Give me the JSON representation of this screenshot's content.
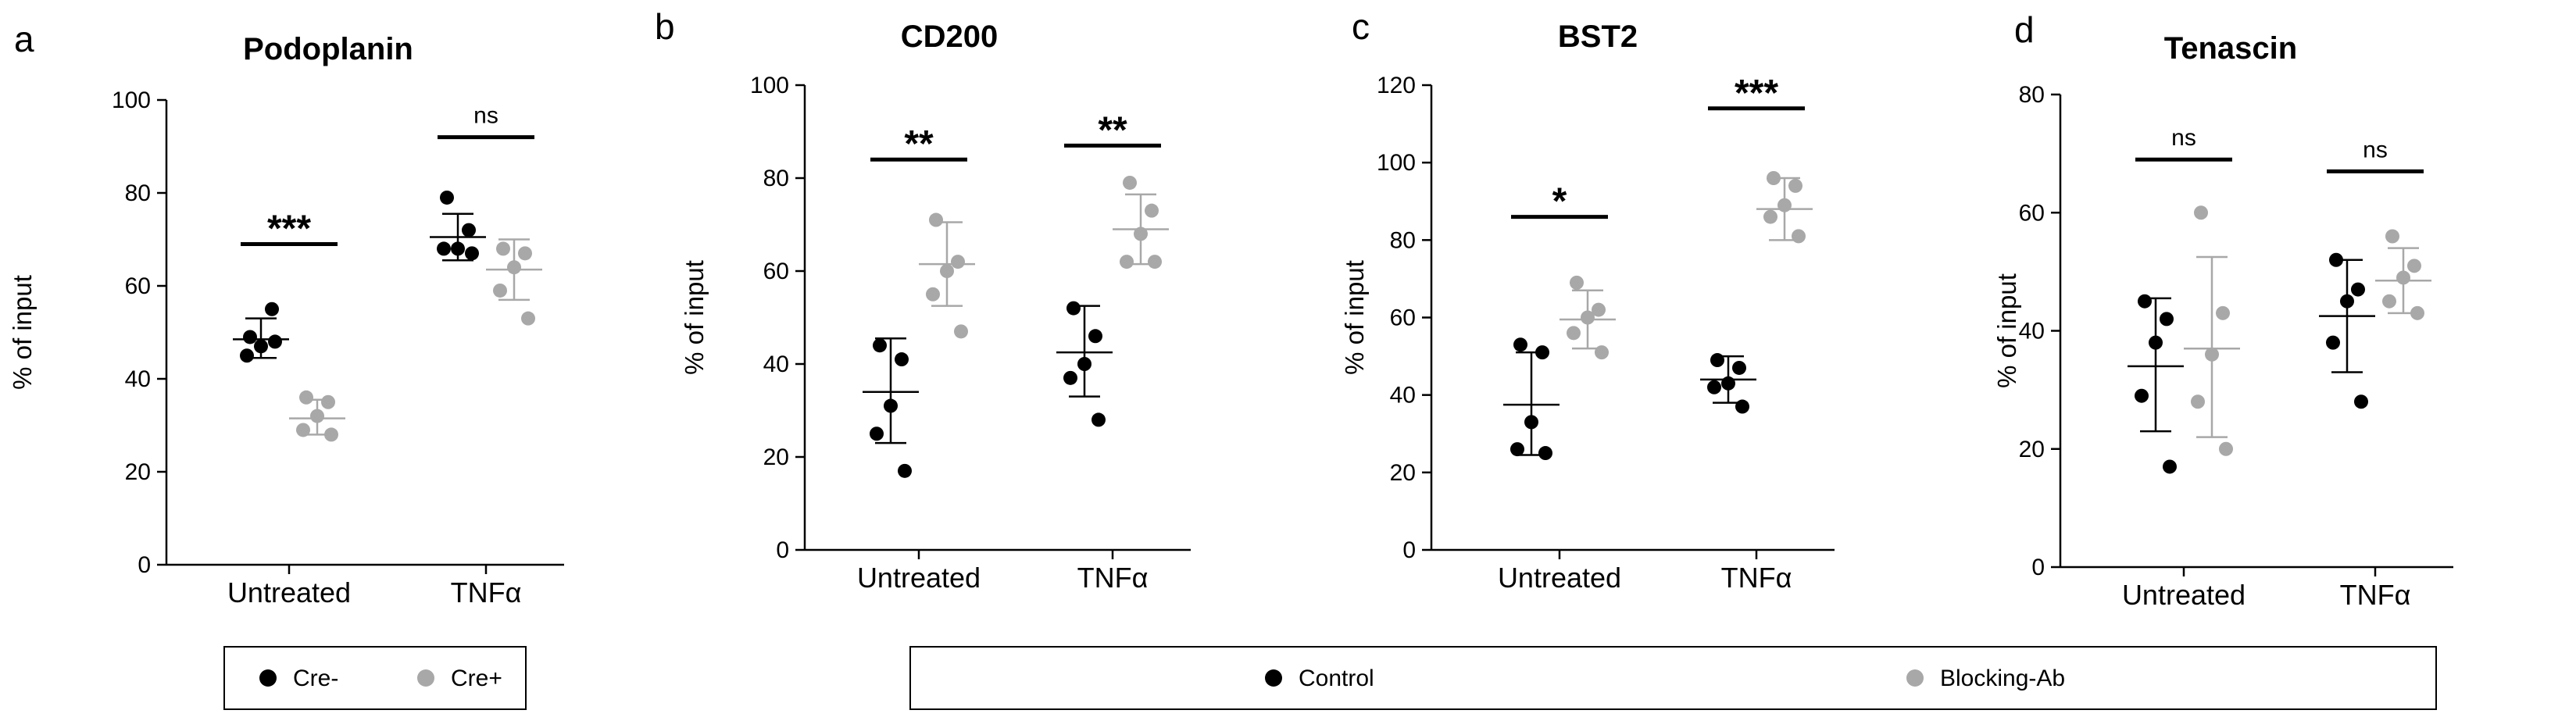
{
  "chart_data": [
    {
      "panel": "a",
      "type": "scatter",
      "title": "Podoplanin",
      "ylabel": "% of input",
      "ylim": [
        0,
        100
      ],
      "yticks": [
        0,
        20,
        40,
        60,
        80,
        100
      ],
      "categories": [
        "Untreated",
        "TNFα"
      ],
      "series": [
        {
          "name": "Cre-",
          "color": "#000000",
          "points": [
            [
              49,
              55,
              47,
              45,
              48
            ],
            [
              79,
              72,
              68,
              68,
              67
            ]
          ],
          "mean": [
            48.5,
            70.5
          ],
          "sd_low": [
            44.5,
            65.5
          ],
          "sd_high": [
            53,
            75.5
          ]
        },
        {
          "name": "Cre+",
          "color": "#a8a8a8",
          "points": [
            [
              36,
              35,
              32,
              29,
              28
            ],
            [
              68,
              67,
              64,
              59,
              53
            ]
          ],
          "mean": [
            31.5,
            63.5
          ],
          "sd_low": [
            28,
            57
          ],
          "sd_high": [
            35.5,
            70
          ]
        }
      ],
      "annotations": [
        {
          "text": "***",
          "y": 69
        },
        {
          "text": "ns",
          "y": 92
        }
      ]
    },
    {
      "panel": "b",
      "type": "scatter",
      "title": "CD200",
      "ylabel": "% of input",
      "ylim": [
        0,
        100
      ],
      "yticks": [
        0,
        20,
        40,
        60,
        80,
        100
      ],
      "categories": [
        "Untreated",
        "TNFα"
      ],
      "series": [
        {
          "name": "Control",
          "color": "#000000",
          "points": [
            [
              44,
              41,
              31,
              25,
              17
            ],
            [
              52,
              46,
              40,
              37,
              28
            ]
          ],
          "mean": [
            34,
            42.5
          ],
          "sd_low": [
            23,
            33
          ],
          "sd_high": [
            45.5,
            52.5
          ]
        },
        {
          "name": "Blocking-Ab",
          "color": "#a8a8a8",
          "points": [
            [
              71,
              62,
              60,
              55,
              47
            ],
            [
              79,
              73,
              68,
              62,
              62
            ]
          ],
          "mean": [
            61.5,
            69
          ],
          "sd_low": [
            52.5,
            61.5
          ],
          "sd_high": [
            70.5,
            76.5
          ]
        }
      ],
      "annotations": [
        {
          "text": "**",
          "y": 84
        },
        {
          "text": "**",
          "y": 87
        }
      ]
    },
    {
      "panel": "c",
      "type": "scatter",
      "title": "BST2",
      "ylabel": "% of input",
      "ylim": [
        0,
        120
      ],
      "yticks": [
        0,
        20,
        40,
        60,
        80,
        100,
        120
      ],
      "categories": [
        "Untreated",
        "TNFα"
      ],
      "series": [
        {
          "name": "Control",
          "color": "#000000",
          "points": [
            [
              53,
              51,
              33,
              26,
              25
            ],
            [
              49,
              47,
              43,
              42,
              37
            ]
          ],
          "mean": [
            37.5,
            44
          ],
          "sd_low": [
            24.5,
            38
          ],
          "sd_high": [
            51,
            50
          ]
        },
        {
          "name": "Blocking-Ab",
          "color": "#a8a8a8",
          "points": [
            [
              69,
              62,
              60,
              56,
              51
            ],
            [
              96,
              94,
              89,
              86,
              81
            ]
          ],
          "mean": [
            59.5,
            88
          ],
          "sd_low": [
            52,
            80
          ],
          "sd_high": [
            67,
            96
          ]
        }
      ],
      "annotations": [
        {
          "text": "*",
          "y": 86
        },
        {
          "text": "***",
          "y": 114
        }
      ]
    },
    {
      "panel": "d",
      "type": "scatter",
      "title": "Tenascin",
      "ylabel": "% of input",
      "ylim": [
        0,
        80
      ],
      "yticks": [
        0,
        20,
        40,
        60,
        80
      ],
      "categories": [
        "Untreated",
        "TNFα"
      ],
      "series": [
        {
          "name": "Control",
          "color": "#000000",
          "points": [
            [
              45,
              42,
              38,
              29,
              17
            ],
            [
              52,
              47,
              45,
              38,
              28
            ]
          ],
          "mean": [
            34,
            42.5
          ],
          "sd_low": [
            23,
            33
          ],
          "sd_high": [
            45.5,
            52
          ]
        },
        {
          "name": "Blocking-Ab",
          "color": "#a8a8a8",
          "points": [
            [
              60,
              43,
              36,
              28,
              20
            ],
            [
              56,
              51,
              49,
              45,
              43
            ]
          ],
          "mean": [
            37,
            48.5
          ],
          "sd_low": [
            22,
            43
          ],
          "sd_high": [
            52.5,
            54
          ]
        }
      ],
      "annotations": [
        {
          "text": "ns",
          "y": 69
        },
        {
          "text": "ns",
          "y": 67
        }
      ]
    }
  ],
  "legends": [
    {
      "items": [
        {
          "label": "Cre-",
          "color": "#000000"
        },
        {
          "label": "Cre+",
          "color": "#a8a8a8"
        }
      ]
    },
    {
      "items": [
        {
          "label": "Control",
          "color": "#000000"
        },
        {
          "label": "Blocking-Ab",
          "color": "#a8a8a8"
        }
      ]
    }
  ]
}
